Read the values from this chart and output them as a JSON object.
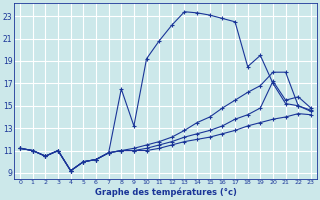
{
  "xlabel": "Graphe des températures (°c)",
  "bg_color": "#cce8ea",
  "grid_color": "#b8d8da",
  "line_color": "#1a3598",
  "xlim": [
    -0.5,
    23.5
  ],
  "ylim": [
    8.5,
    24.2
  ],
  "ytick_vals": [
    9,
    11,
    13,
    15,
    17,
    19,
    21,
    23
  ],
  "xtick_vals": [
    0,
    1,
    2,
    3,
    4,
    5,
    6,
    7,
    8,
    9,
    10,
    11,
    12,
    13,
    14,
    15,
    16,
    17,
    18,
    19,
    20,
    21,
    22,
    23
  ],
  "line1_x": [
    0,
    1,
    2,
    3,
    4,
    5,
    6,
    7,
    8,
    9,
    10,
    11,
    12,
    13,
    14,
    15,
    16,
    17,
    18,
    19,
    20,
    21,
    22,
    23
  ],
  "line1_y": [
    11.2,
    11.0,
    10.5,
    11.0,
    9.2,
    10.0,
    10.2,
    10.8,
    16.5,
    13.2,
    19.2,
    20.8,
    22.2,
    23.4,
    23.3,
    23.1,
    22.8,
    22.5,
    18.5,
    19.5,
    17.0,
    15.2,
    15.0,
    14.6
  ],
  "line2_x": [
    0,
    1,
    2,
    3,
    4,
    5,
    6,
    7,
    8,
    9,
    10,
    11,
    12,
    13,
    14,
    15,
    16,
    17,
    18,
    19,
    20,
    21,
    22,
    23
  ],
  "line2_y": [
    11.2,
    11.0,
    10.5,
    11.0,
    9.2,
    10.0,
    10.2,
    10.8,
    11.0,
    11.2,
    11.5,
    11.8,
    12.2,
    12.8,
    13.5,
    14.0,
    14.8,
    15.5,
    16.2,
    16.8,
    18.0,
    18.0,
    15.0,
    14.5
  ],
  "line3_x": [
    0,
    1,
    2,
    3,
    4,
    5,
    6,
    7,
    8,
    9,
    10,
    11,
    12,
    13,
    14,
    15,
    16,
    17,
    18,
    19,
    20,
    21,
    22,
    23
  ],
  "line3_y": [
    11.2,
    11.0,
    10.5,
    11.0,
    9.2,
    10.0,
    10.2,
    10.8,
    11.0,
    11.0,
    11.2,
    11.5,
    11.8,
    12.2,
    12.5,
    12.8,
    13.2,
    13.8,
    14.2,
    14.8,
    17.2,
    15.5,
    15.8,
    14.8
  ],
  "line4_x": [
    0,
    1,
    2,
    3,
    4,
    5,
    6,
    7,
    8,
    9,
    10,
    11,
    12,
    13,
    14,
    15,
    16,
    17,
    18,
    19,
    20,
    21,
    22,
    23
  ],
  "line4_y": [
    11.2,
    11.0,
    10.5,
    11.0,
    9.2,
    10.0,
    10.2,
    10.8,
    11.0,
    11.0,
    11.0,
    11.2,
    11.5,
    11.8,
    12.0,
    12.2,
    12.5,
    12.8,
    13.2,
    13.5,
    13.8,
    14.0,
    14.3,
    14.2
  ]
}
